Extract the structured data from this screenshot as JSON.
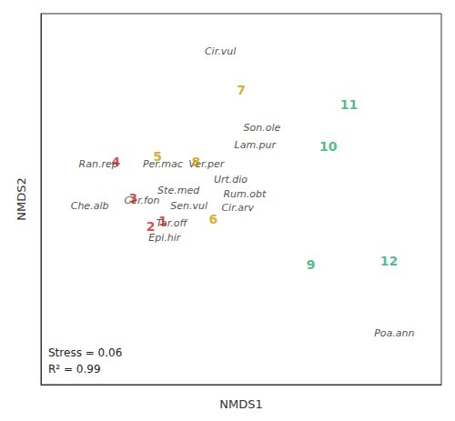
{
  "chart_data": {
    "type": "scatter",
    "xlabel": "NMDS1",
    "ylabel": "NMDS2",
    "xlim": [
      -0.95,
      1.35
    ],
    "ylim": [
      -0.95,
      1.0
    ],
    "tick_labels": false,
    "grid": false,
    "annotations": [
      "Stress = 0.06\nR² = 0.99"
    ],
    "series": [
      {
        "type": "text",
        "color": "#222222",
        "labels": [
          "Cir.vul",
          "Son.ole",
          "Lam.pur",
          "Per.mac",
          "Ver.per",
          "Ran.rep",
          "Ste.med",
          "Sen.vul",
          "Urt.dio",
          "Rum.obt",
          "Cir.arv",
          "Cer.fon",
          "Che.alb",
          "Tar.off",
          "Epi.hir",
          "Poa.ann"
        ],
        "x": [
          0.08,
          0.32,
          0.28,
          -0.25,
          -0.0,
          -0.62,
          -0.16,
          -0.1,
          0.14,
          0.22,
          0.18,
          -0.37,
          -0.67,
          -0.2,
          -0.24,
          1.08
        ],
        "values": [
          0.8,
          0.4,
          0.31,
          0.21,
          0.21,
          0.21,
          0.07,
          -0.01,
          0.13,
          0.05,
          -0.02,
          0.02,
          -0.01,
          -0.1,
          -0.18,
          -0.68
        ]
      },
      {
        "type": "text",
        "labels": [
          "1",
          "2",
          "3",
          "4",
          "5",
          "6",
          "7",
          "8",
          "9",
          "10",
          "11",
          "12"
        ],
        "x": [
          -0.25,
          -0.32,
          -0.42,
          -0.52,
          -0.28,
          0.04,
          0.2,
          -0.06,
          0.6,
          0.7,
          0.82,
          1.05
        ],
        "values": [
          -0.09,
          -0.12,
          0.03,
          0.22,
          0.25,
          -0.08,
          0.6,
          0.22,
          -0.32,
          0.3,
          0.52,
          -0.3
        ],
        "colors": [
          "#cc2222",
          "#cc2222",
          "#cc2222",
          "#cc2222",
          "#cc9900",
          "#cc9900",
          "#cc9900",
          "#cc9900",
          "#2aaa6a",
          "#2aaa6a",
          "#2aaa6a",
          "#2aaa6a"
        ]
      }
    ]
  }
}
